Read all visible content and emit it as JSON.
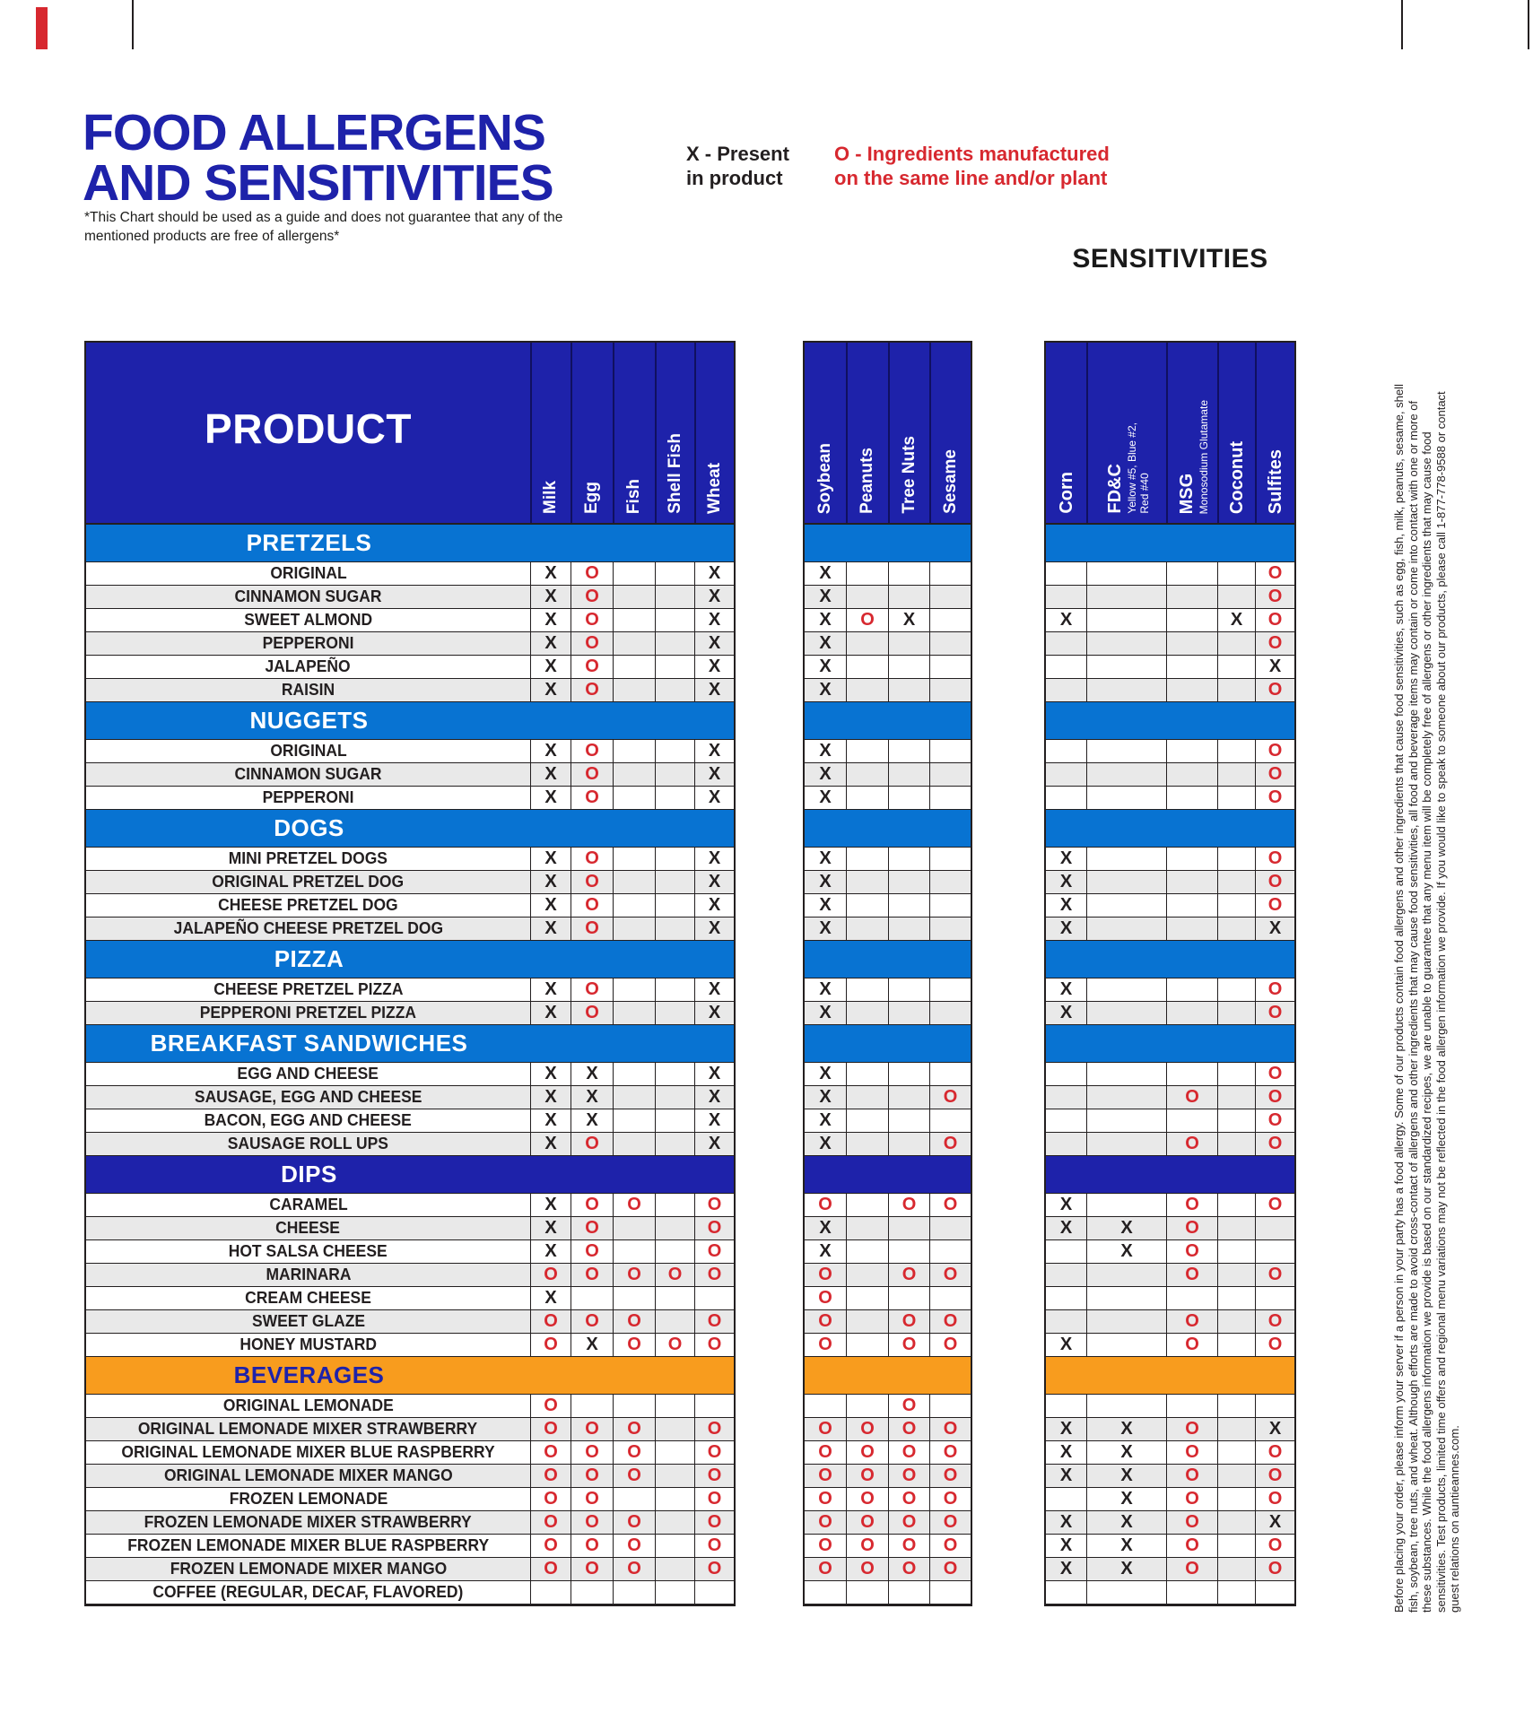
{
  "page": {
    "title_line1": "FOOD ALLERGENS",
    "title_line2": "AND SENSITIVITIES",
    "disclaimer": "*This Chart should be used as a guide and does not guarantee that any of the mentioned products are free of allergens*",
    "sensitivities_heading": "SENSITIVITIES"
  },
  "legend": {
    "x_line1": "X - Present",
    "x_line2": "in product",
    "o_line1": "O - Ingredients manufactured",
    "o_line2": "on the same line and/or plant"
  },
  "footnote": "Before placing your order, please inform your server if a person in your party has a food allergy. Some of our products contain food allergens and other ingredients that cause food sensitivities, such as egg, fish, milk, peanuts, sesame, shell fish, soybean, tree nuts, and wheat. Although efforts are made to avoid cross-contact of allergens and other ingredients that may cause food sensitivities, all food and beverage items may contain or come into contact with one or more of these substances. While the food allergens information we provide is based on our standardized recipes, we are unable to guarantee that any menu item will be completely free of allergens or other ingredients that may cause food sensitivities. Test products, limited time offers and regional menu variations may not be reflected in the food allergen information we provide. If you would like to speak to someone about our products, please call 1-877-778-9588 or contact guest relations on auntieannes.com.",
  "chart_data": {
    "type": "table",
    "marks": {
      "present": "X",
      "same_line": "O"
    },
    "colors": {
      "navy": "#1e22aa",
      "section_blue": "#0873d2",
      "orange": "#f89c1e",
      "red": "#d7282f",
      "ink": "#231f20",
      "row_alt": "#e9e9e9"
    },
    "columns": {
      "product_header": "PRODUCT",
      "allergens": [
        "Milk",
        "Egg",
        "Fish",
        "Shell Fish",
        "Wheat"
      ],
      "allergens2": [
        "Soybean",
        "Peanuts",
        "Tree Nuts",
        "Sesame"
      ],
      "sensitivities": [
        {
          "label": "Corn",
          "sub": []
        },
        {
          "label": "FD&C",
          "sub": [
            "Yellow #5, Blue #2,",
            "Red #40"
          ]
        },
        {
          "label": "MSG",
          "sub": [
            "Monosodium Glutamate"
          ]
        },
        {
          "label": "Coconut",
          "sub": []
        },
        {
          "label": "Sulfites",
          "sub": []
        }
      ]
    },
    "sections": [
      {
        "name": "PRETZELS",
        "band": "blue",
        "rows": [
          {
            "product": "ORIGINAL",
            "allergens": [
              "X",
              "O",
              "",
              "",
              "X"
            ],
            "allergens2": [
              "X",
              "",
              "",
              ""
            ],
            "sensitivities": [
              "",
              "",
              "",
              "",
              "O"
            ]
          },
          {
            "product": "CINNAMON SUGAR",
            "allergens": [
              "X",
              "O",
              "",
              "",
              "X"
            ],
            "allergens2": [
              "X",
              "",
              "",
              ""
            ],
            "sensitivities": [
              "",
              "",
              "",
              "",
              "O"
            ]
          },
          {
            "product": "SWEET ALMOND",
            "allergens": [
              "X",
              "O",
              "",
              "",
              "X"
            ],
            "allergens2": [
              "X",
              "O",
              "X",
              ""
            ],
            "sensitivities": [
              "X",
              "",
              "",
              "X",
              "O"
            ]
          },
          {
            "product": "PEPPERONI",
            "allergens": [
              "X",
              "O",
              "",
              "",
              "X"
            ],
            "allergens2": [
              "X",
              "",
              "",
              ""
            ],
            "sensitivities": [
              "",
              "",
              "",
              "",
              "O"
            ]
          },
          {
            "product": "JALAPEÑO",
            "allergens": [
              "X",
              "O",
              "",
              "",
              "X"
            ],
            "allergens2": [
              "X",
              "",
              "",
              ""
            ],
            "sensitivities": [
              "",
              "",
              "",
              "",
              "X"
            ]
          },
          {
            "product": "RAISIN",
            "allergens": [
              "X",
              "O",
              "",
              "",
              "X"
            ],
            "allergens2": [
              "X",
              "",
              "",
              ""
            ],
            "sensitivities": [
              "",
              "",
              "",
              "",
              "O"
            ]
          }
        ]
      },
      {
        "name": "NUGGETS",
        "band": "blue",
        "rows": [
          {
            "product": "ORIGINAL",
            "allergens": [
              "X",
              "O",
              "",
              "",
              "X"
            ],
            "allergens2": [
              "X",
              "",
              "",
              ""
            ],
            "sensitivities": [
              "",
              "",
              "",
              "",
              "O"
            ]
          },
          {
            "product": "CINNAMON SUGAR",
            "allergens": [
              "X",
              "O",
              "",
              "",
              "X"
            ],
            "allergens2": [
              "X",
              "",
              "",
              ""
            ],
            "sensitivities": [
              "",
              "",
              "",
              "",
              "O"
            ]
          },
          {
            "product": "PEPPERONI",
            "allergens": [
              "X",
              "O",
              "",
              "",
              "X"
            ],
            "allergens2": [
              "X",
              "",
              "",
              ""
            ],
            "sensitivities": [
              "",
              "",
              "",
              "",
              "O"
            ]
          }
        ]
      },
      {
        "name": "DOGS",
        "band": "blue",
        "rows": [
          {
            "product": "MINI PRETZEL DOGS",
            "allergens": [
              "X",
              "O",
              "",
              "",
              "X"
            ],
            "allergens2": [
              "X",
              "",
              "",
              ""
            ],
            "sensitivities": [
              "X",
              "",
              "",
              "",
              "O"
            ]
          },
          {
            "product": "ORIGINAL PRETZEL DOG",
            "allergens": [
              "X",
              "O",
              "",
              "",
              "X"
            ],
            "allergens2": [
              "X",
              "",
              "",
              ""
            ],
            "sensitivities": [
              "X",
              "",
              "",
              "",
              "O"
            ]
          },
          {
            "product": "CHEESE PRETZEL DOG",
            "allergens": [
              "X",
              "O",
              "",
              "",
              "X"
            ],
            "allergens2": [
              "X",
              "",
              "",
              ""
            ],
            "sensitivities": [
              "X",
              "",
              "",
              "",
              "O"
            ]
          },
          {
            "product": "JALAPEÑO CHEESE PRETZEL DOG",
            "allergens": [
              "X",
              "O",
              "",
              "",
              "X"
            ],
            "allergens2": [
              "X",
              "",
              "",
              ""
            ],
            "sensitivities": [
              "X",
              "",
              "",
              "",
              "X"
            ]
          }
        ]
      },
      {
        "name": "PIZZA",
        "band": "blue",
        "rows": [
          {
            "product": "CHEESE PRETZEL PIZZA",
            "allergens": [
              "X",
              "O",
              "",
              "",
              "X"
            ],
            "allergens2": [
              "X",
              "",
              "",
              ""
            ],
            "sensitivities": [
              "X",
              "",
              "",
              "",
              "O"
            ]
          },
          {
            "product": "PEPPERONI PRETZEL PIZZA",
            "allergens": [
              "X",
              "O",
              "",
              "",
              "X"
            ],
            "allergens2": [
              "X",
              "",
              "",
              ""
            ],
            "sensitivities": [
              "X",
              "",
              "",
              "",
              "O"
            ]
          }
        ]
      },
      {
        "name": "BREAKFAST SANDWICHES",
        "band": "blue",
        "rows": [
          {
            "product": "EGG AND CHEESE",
            "allergens": [
              "X",
              "X",
              "",
              "",
              "X"
            ],
            "allergens2": [
              "X",
              "",
              "",
              ""
            ],
            "sensitivities": [
              "",
              "",
              "",
              "",
              "O"
            ]
          },
          {
            "product": "SAUSAGE, EGG AND CHEESE",
            "allergens": [
              "X",
              "X",
              "",
              "",
              "X"
            ],
            "allergens2": [
              "X",
              "",
              "",
              "O"
            ],
            "sensitivities": [
              "",
              "",
              "O",
              "",
              "O"
            ]
          },
          {
            "product": "BACON, EGG AND CHEESE",
            "allergens": [
              "X",
              "X",
              "",
              "",
              "X"
            ],
            "allergens2": [
              "X",
              "",
              "",
              ""
            ],
            "sensitivities": [
              "",
              "",
              "",
              "",
              "O"
            ]
          },
          {
            "product": "SAUSAGE ROLL UPS",
            "allergens": [
              "X",
              "O",
              "",
              "",
              "X"
            ],
            "allergens2": [
              "X",
              "",
              "",
              "O"
            ],
            "sensitivities": [
              "",
              "",
              "O",
              "",
              "O"
            ]
          }
        ]
      },
      {
        "name": "DIPS",
        "band": "navy",
        "rows": [
          {
            "product": "CARAMEL",
            "allergens": [
              "X",
              "O",
              "O",
              "",
              "O"
            ],
            "allergens2": [
              "O",
              "",
              "O",
              "O"
            ],
            "sensitivities": [
              "X",
              "",
              "O",
              "",
              "O"
            ]
          },
          {
            "product": "CHEESE",
            "allergens": [
              "X",
              "O",
              "",
              "",
              "O"
            ],
            "allergens2": [
              "X",
              "",
              "",
              ""
            ],
            "sensitivities": [
              "X",
              "X",
              "O",
              "",
              ""
            ]
          },
          {
            "product": "HOT SALSA CHEESE",
            "allergens": [
              "X",
              "O",
              "",
              "",
              "O"
            ],
            "allergens2": [
              "X",
              "",
              "",
              ""
            ],
            "sensitivities": [
              "",
              "X",
              "O",
              "",
              ""
            ]
          },
          {
            "product": "MARINARA",
            "allergens": [
              "O",
              "O",
              "O",
              "O",
              "O"
            ],
            "allergens2": [
              "O",
              "",
              "O",
              "O"
            ],
            "sensitivities": [
              "",
              "",
              "O",
              "",
              "O"
            ]
          },
          {
            "product": "CREAM CHEESE",
            "allergens": [
              "X",
              "",
              "",
              "",
              ""
            ],
            "allergens2": [
              "O",
              "",
              "",
              ""
            ],
            "sensitivities": [
              "",
              "",
              "",
              "",
              ""
            ]
          },
          {
            "product": "SWEET GLAZE",
            "allergens": [
              "O",
              "O",
              "O",
              "",
              "O"
            ],
            "allergens2": [
              "O",
              "",
              "O",
              "O"
            ],
            "sensitivities": [
              "",
              "",
              "O",
              "",
              "O"
            ]
          },
          {
            "product": "HONEY MUSTARD",
            "allergens": [
              "O",
              "X",
              "O",
              "O",
              "O"
            ],
            "allergens2": [
              "O",
              "",
              "O",
              "O"
            ],
            "sensitivities": [
              "X",
              "",
              "O",
              "",
              "O"
            ]
          }
        ]
      },
      {
        "name": "BEVERAGES",
        "band": "orange",
        "rows": [
          {
            "product": "ORIGINAL LEMONADE",
            "allergens": [
              "O",
              "",
              "",
              "",
              ""
            ],
            "allergens2": [
              "",
              "",
              "O",
              ""
            ],
            "sensitivities": [
              "",
              "",
              "",
              "",
              ""
            ]
          },
          {
            "product": "ORIGINAL LEMONADE MIXER STRAWBERRY",
            "allergens": [
              "O",
              "O",
              "O",
              "",
              "O"
            ],
            "allergens2": [
              "O",
              "O",
              "O",
              "O"
            ],
            "sensitivities": [
              "X",
              "X",
              "O",
              "",
              "X"
            ]
          },
          {
            "product": "ORIGINAL LEMONADE MIXER BLUE RASPBERRY",
            "allergens": [
              "O",
              "O",
              "O",
              "",
              "O"
            ],
            "allergens2": [
              "O",
              "O",
              "O",
              "O"
            ],
            "sensitivities": [
              "X",
              "X",
              "O",
              "",
              "O"
            ]
          },
          {
            "product": "ORIGINAL LEMONADE MIXER MANGO",
            "allergens": [
              "O",
              "O",
              "O",
              "",
              "O"
            ],
            "allergens2": [
              "O",
              "O",
              "O",
              "O"
            ],
            "sensitivities": [
              "X",
              "X",
              "O",
              "",
              "O"
            ]
          },
          {
            "product": "FROZEN LEMONADE",
            "allergens": [
              "O",
              "O",
              "",
              "",
              "O"
            ],
            "allergens2": [
              "O",
              "O",
              "O",
              "O"
            ],
            "sensitivities": [
              "",
              "X",
              "O",
              "",
              "O"
            ]
          },
          {
            "product": "FROZEN LEMONADE MIXER STRAWBERRY",
            "allergens": [
              "O",
              "O",
              "O",
              "",
              "O"
            ],
            "allergens2": [
              "O",
              "O",
              "O",
              "O"
            ],
            "sensitivities": [
              "X",
              "X",
              "O",
              "",
              "X"
            ]
          },
          {
            "product": "FROZEN LEMONADE MIXER BLUE RASPBERRY",
            "allergens": [
              "O",
              "O",
              "O",
              "",
              "O"
            ],
            "allergens2": [
              "O",
              "O",
              "O",
              "O"
            ],
            "sensitivities": [
              "X",
              "X",
              "O",
              "",
              "O"
            ]
          },
          {
            "product": "FROZEN LEMONADE MIXER MANGO",
            "allergens": [
              "O",
              "O",
              "O",
              "",
              "O"
            ],
            "allergens2": [
              "O",
              "O",
              "O",
              "O"
            ],
            "sensitivities": [
              "X",
              "X",
              "O",
              "",
              "O"
            ]
          },
          {
            "product": "COFFEE (REGULAR, DECAF, FLAVORED)",
            "allergens": [
              "",
              "",
              "",
              "",
              ""
            ],
            "allergens2": [
              "",
              "",
              "",
              ""
            ],
            "sensitivities": [
              "",
              "",
              "",
              "",
              ""
            ]
          }
        ]
      }
    ]
  }
}
